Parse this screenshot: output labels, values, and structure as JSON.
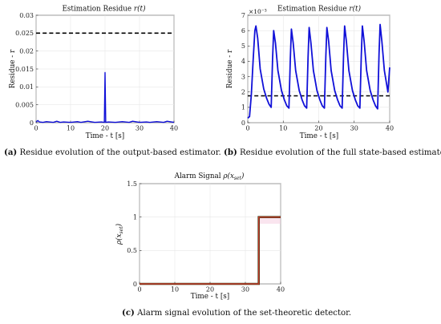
{
  "captions": {
    "a": {
      "label": "(a)",
      "text": " Residue evolution of the output-based estimator."
    },
    "b": {
      "label": "(b)",
      "text": " Residue evolution of the full state-based estimator."
    },
    "c": {
      "label": "(c)",
      "text": " Alarm signal evolution of the set-theoretic detector."
    }
  },
  "colors": {
    "series": "#1010d8",
    "threshold": "#000000",
    "alarm": "#c0392b",
    "alarm_band": "#f5c6dc"
  },
  "chart_data": [
    {
      "id": "a",
      "type": "line",
      "title": "Estimation Residue r(t)",
      "title_plain": "Estimation Residue ",
      "title_var": "r(t)",
      "xlabel": "Time - t [s]",
      "ylabel": "Residue - r",
      "xlim": [
        0,
        40
      ],
      "ylim": [
        0,
        0.03
      ],
      "xticks": [
        "0",
        "10",
        "20",
        "30",
        "40"
      ],
      "yticks": [
        "0",
        "0.005",
        "0.01",
        "0.015",
        "0.02",
        "0.025",
        "0.03"
      ],
      "threshold": 0.025,
      "grid": true,
      "series": [
        {
          "x": [
            0,
            0.5,
            1,
            2,
            3,
            5,
            6,
            7,
            8,
            10,
            12,
            13,
            15,
            17,
            19,
            19.8,
            20,
            20.2,
            21,
            23,
            25,
            27,
            28,
            30,
            32,
            33,
            35,
            37,
            38,
            40
          ],
          "y": [
            0.0002,
            0.0006,
            0.0002,
            0.0001,
            0.0003,
            0.0001,
            0.0004,
            0.0001,
            0.0002,
            0.0001,
            0.0003,
            0.0001,
            0.0004,
            0.0001,
            0.0002,
            0.0001,
            0.014,
            0.0001,
            0.0002,
            0.0001,
            0.0003,
            0.0001,
            0.0004,
            0.0001,
            0.0002,
            0.0001,
            0.0003,
            0.0001,
            0.0004,
            0.0001
          ]
        }
      ]
    },
    {
      "id": "b",
      "type": "line",
      "title": "Estimation Residue r(t)",
      "title_plain": "Estimation Residue ",
      "title_var": "r(t)",
      "xlabel": "Time - t [s]",
      "ylabel": "Residue - r",
      "y_multiplier": "×10⁻³",
      "xlim": [
        0,
        40
      ],
      "ylim": [
        0,
        7
      ],
      "xticks": [
        "0",
        "10",
        "20",
        "30",
        "40"
      ],
      "yticks": [
        "0",
        "1",
        "2",
        "3",
        "4",
        "5",
        "6",
        "7"
      ],
      "threshold": 1.75,
      "grid": true,
      "series": [
        {
          "x": [
            0,
            0.5,
            1.0,
            1.5,
            2.0,
            2.3,
            2.8,
            3.5,
            4.5,
            5.3,
            6.0,
            6.6,
            7.0,
            7.3,
            7.8,
            8.5,
            9.5,
            10.3,
            11.0,
            11.6,
            12.0,
            12.3,
            12.8,
            13.5,
            14.5,
            15.3,
            16.0,
            16.6,
            17.0,
            17.3,
            17.8,
            18.5,
            19.5,
            20.3,
            21.0,
            21.6,
            22.0,
            22.3,
            22.8,
            23.5,
            24.5,
            25.3,
            26.0,
            26.6,
            27.0,
            27.3,
            27.8,
            28.5,
            29.5,
            30.3,
            31.0,
            31.6,
            32.0,
            32.3,
            32.8,
            33.5,
            34.5,
            35.3,
            36.0,
            36.6,
            37.0,
            37.3,
            37.8,
            38.5,
            39.5,
            40.0
          ],
          "y": [
            0.3,
            0.4,
            1.8,
            4.0,
            6.0,
            6.3,
            5.5,
            3.5,
            2.2,
            1.6,
            1.2,
            1.0,
            4.2,
            6.0,
            5.2,
            3.4,
            2.1,
            1.5,
            1.1,
            0.95,
            4.2,
            6.1,
            5.2,
            3.4,
            2.1,
            1.5,
            1.1,
            0.95,
            4.3,
            6.2,
            5.2,
            3.4,
            2.1,
            1.5,
            1.1,
            0.95,
            4.3,
            6.2,
            5.3,
            3.4,
            2.1,
            1.5,
            1.1,
            0.95,
            4.4,
            6.3,
            5.3,
            3.4,
            2.1,
            1.5,
            1.1,
            0.95,
            4.4,
            6.3,
            5.3,
            3.4,
            2.1,
            1.5,
            1.1,
            0.9,
            4.5,
            6.4,
            5.3,
            3.4,
            2.0,
            3.6
          ]
        }
      ]
    },
    {
      "id": "c",
      "type": "line",
      "title": "Alarm Signal ρ(x_set)",
      "title_plain": "Alarm Signal ",
      "title_var": "ρ(x",
      "title_sub": "set",
      "xlabel": "Time - t [s]",
      "ylabel": "ρ(x_set)",
      "xlim": [
        0,
        40
      ],
      "ylim": [
        0,
        1.5
      ],
      "xticks": [
        "0",
        "10",
        "20",
        "30",
        "40"
      ],
      "yticks": [
        "0",
        "0.5",
        "1",
        "1.5"
      ],
      "grid": true,
      "step_time": 33.8,
      "series": [
        {
          "x": [
            0,
            33.8,
            33.8,
            40
          ],
          "y": [
            0,
            0,
            1,
            1
          ]
        }
      ]
    }
  ]
}
